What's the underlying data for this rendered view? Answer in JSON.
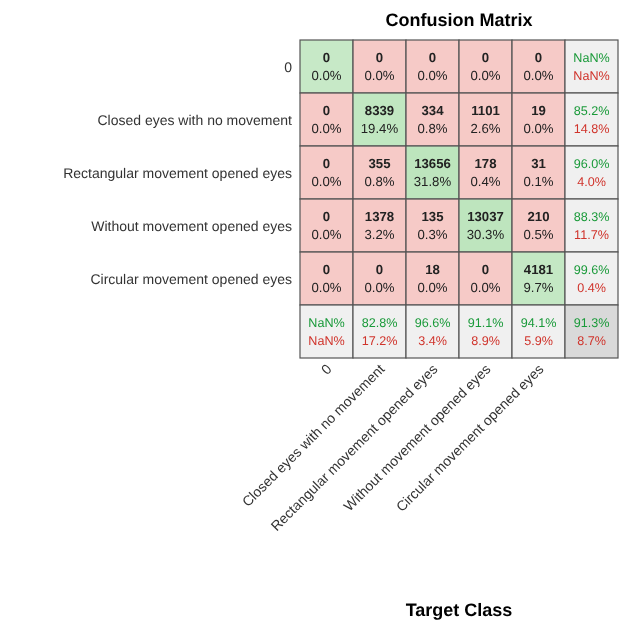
{
  "chart_data": {
    "type": "heatmap",
    "title": "Confusion Matrix",
    "xlabel": "Target Class",
    "data_labels": true,
    "categories": [
      "0",
      "Closed eyes with no movement",
      "Rectangular movement opened eyes",
      "Without movement opened eyes",
      "Circular movement opened eyes"
    ],
    "y_categories": [
      "0",
      "Closed eyes with no movement",
      "Rectangular movement opened eyes",
      "Without movement opened eyes",
      "Circular movement opened eyes"
    ],
    "cells": [
      [
        0,
        0,
        0,
        0,
        0
      ],
      [
        0,
        8339,
        334,
        1101,
        19
      ],
      [
        0,
        355,
        13656,
        178,
        31
      ],
      [
        0,
        1378,
        135,
        13037,
        210
      ],
      [
        0,
        0,
        18,
        0,
        4181
      ]
    ],
    "annotations": [
      "0.0%",
      "0.0%",
      "0.0%",
      "0.0%",
      "0.0%",
      "0.0%",
      "19.4%",
      "0.8%",
      "2.6%",
      "0.0%",
      "0.0%",
      "0.8%",
      "31.8%",
      "0.4%",
      "0.1%",
      "0.0%",
      "3.2%",
      "0.3%",
      "30.3%",
      "0.5%",
      "0.0%",
      "0.0%",
      "0.0%",
      "0.0%",
      "9.7%",
      "NaN%\nNaN%",
      "85.2%\n14.8%",
      "96.0%\n4.0%",
      "88.3%\n11.7%",
      "99.6%\n0.4%",
      "NaN%\nNaN%",
      "82.8%\n17.2%",
      "96.6%\n3.4%",
      "91.1%\n8.9%",
      "94.1%\n5.9%",
      "91.3%\n8.7%"
    ]
  }
}
